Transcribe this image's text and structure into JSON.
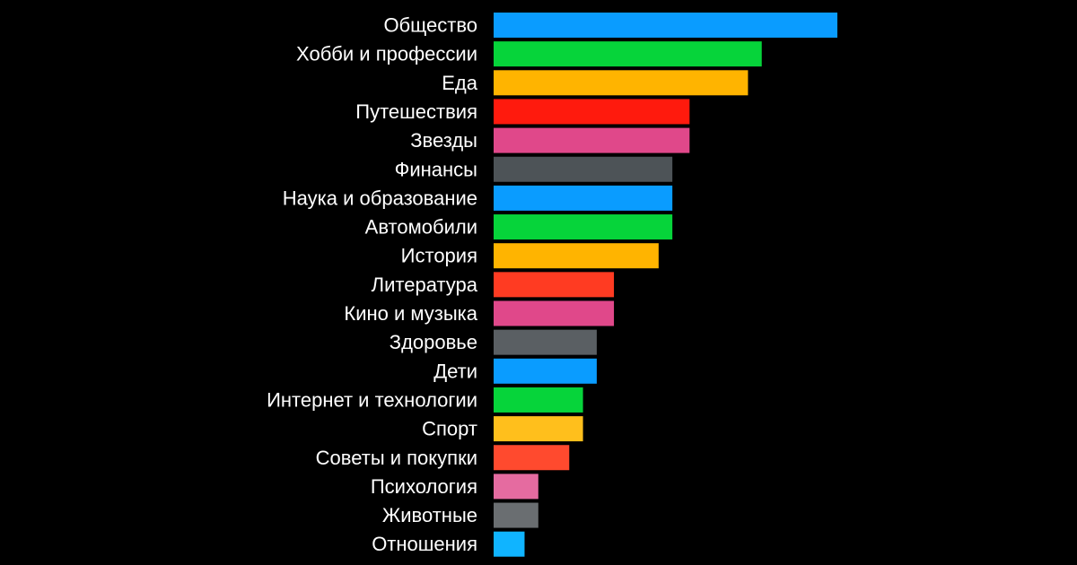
{
  "chart_data": {
    "type": "bar",
    "orientation": "horizontal",
    "title": "",
    "xlabel": "",
    "ylabel": "",
    "grid": false,
    "legend": "none",
    "xlim": [
      0,
      100
    ],
    "categories": [
      "Общество",
      "Хобби и професcии",
      "Еда",
      "Путешествия",
      "Звезды",
      "Финансы",
      "Наука и образование",
      "Автомобили",
      "История",
      "Литература",
      "Кино и музыка",
      "Здоровье",
      "Дети",
      "Интернет и технологии",
      "Спорт",
      "Советы и покупки",
      "Психология",
      "Животные",
      "Отношения"
    ],
    "values": [
      100,
      78,
      74,
      57,
      57,
      52,
      52,
      52,
      48,
      35,
      35,
      30,
      30,
      26,
      26,
      22,
      13,
      13,
      9
    ],
    "colors": [
      "#0a9cff",
      "#06d43a",
      "#ffb400",
      "#ff1a0d",
      "#e0488a",
      "#4d5357",
      "#0a9cff",
      "#06d43a",
      "#ffb400",
      "#ff3b22",
      "#e0488a",
      "#5a5f63",
      "#0a9cff",
      "#06d43a",
      "#ffbf1c",
      "#ff4a2e",
      "#e56ba0",
      "#6a6e71",
      "#10b4ff"
    ]
  }
}
